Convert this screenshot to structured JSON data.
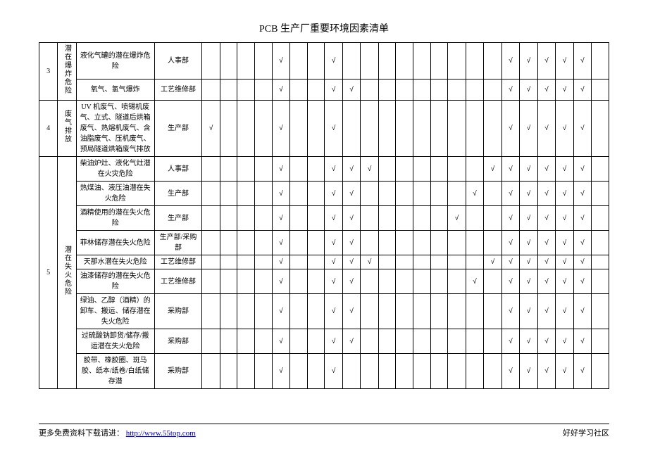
{
  "title": "PCB 生产厂重要环境因素清单",
  "footer": {
    "left_prefix": "更多免费资料下载请进：",
    "link_text": "http://www.55top.com",
    "right_text": "好好学习社区"
  },
  "check_symbol": "√",
  "groups": [
    {
      "num": "3",
      "category": "潜在爆炸危险",
      "rows": [
        {
          "desc": "液化气罐的潜在爆炸危险",
          "dept": "人事部",
          "marks": [
            0,
            0,
            0,
            0,
            1,
            0,
            0,
            1,
            0,
            0,
            0,
            0,
            0,
            0,
            0,
            0,
            0,
            1,
            1,
            1,
            1,
            1,
            0
          ]
        },
        {
          "desc": "氧气、氢气爆炸",
          "dept": "工艺维修部",
          "marks": [
            0,
            0,
            0,
            0,
            1,
            0,
            0,
            1,
            1,
            0,
            0,
            0,
            0,
            0,
            0,
            0,
            0,
            1,
            1,
            1,
            1,
            1,
            0
          ]
        }
      ]
    },
    {
      "num": "4",
      "category": "废气排放",
      "rows": [
        {
          "desc": "UV 机废气、喷锡机废气、立式、隧道后烘箱废气、热熔机废气、含油脂废气、压机废气、预局隧道烘箱废气排放",
          "dept": "生产部",
          "marks": [
            1,
            0,
            0,
            0,
            1,
            0,
            0,
            1,
            0,
            0,
            0,
            0,
            0,
            0,
            0,
            0,
            0,
            1,
            1,
            1,
            1,
            1,
            0
          ]
        }
      ]
    },
    {
      "num": "5",
      "category": "潜在失火危险",
      "rows": [
        {
          "desc": "柴油炉灶、液化气灶潜在火灾危险",
          "dept": "人事部",
          "marks": [
            0,
            0,
            0,
            0,
            1,
            0,
            0,
            1,
            1,
            1,
            0,
            0,
            0,
            0,
            0,
            0,
            1,
            1,
            1,
            1,
            1,
            1,
            0
          ]
        },
        {
          "desc": "热煤油、液压油潜在失火危险",
          "dept": "生产部",
          "marks": [
            0,
            0,
            0,
            0,
            1,
            0,
            0,
            1,
            1,
            0,
            0,
            0,
            0,
            0,
            0,
            1,
            0,
            1,
            1,
            1,
            1,
            1,
            0
          ]
        },
        {
          "desc": "酒精使用的潜在失火危险",
          "dept": "生产部",
          "marks": [
            0,
            0,
            0,
            0,
            1,
            0,
            0,
            1,
            1,
            0,
            0,
            0,
            0,
            0,
            1,
            0,
            0,
            1,
            1,
            1,
            1,
            1,
            0
          ]
        },
        {
          "desc": "菲林储存潜在失火危险",
          "dept": "生产部/采购部",
          "marks": [
            0,
            0,
            0,
            0,
            1,
            0,
            0,
            1,
            1,
            0,
            0,
            0,
            0,
            0,
            0,
            0,
            0,
            1,
            1,
            1,
            1,
            1,
            0
          ]
        },
        {
          "desc": "天那水潜在失火危险",
          "dept": "工艺维修部",
          "marks": [
            0,
            0,
            0,
            0,
            1,
            0,
            0,
            1,
            1,
            1,
            0,
            0,
            0,
            0,
            0,
            0,
            1,
            1,
            1,
            1,
            1,
            1,
            0
          ]
        },
        {
          "desc": "油漆储存的潜在失火危险",
          "dept": "工艺维修部",
          "marks": [
            0,
            0,
            0,
            0,
            1,
            0,
            0,
            1,
            1,
            0,
            0,
            0,
            0,
            0,
            0,
            1,
            0,
            1,
            1,
            1,
            1,
            1,
            0
          ]
        },
        {
          "desc": "绿油、乙醇（酒精）的卸车、搬运、储存潜在失火危险",
          "dept": "采购部",
          "marks": [
            0,
            0,
            0,
            0,
            1,
            0,
            0,
            1,
            1,
            0,
            0,
            0,
            0,
            0,
            0,
            0,
            0,
            1,
            1,
            1,
            1,
            1,
            0
          ]
        },
        {
          "desc": "过硫酸钠卸货/储存/搬运潜在失火危险",
          "dept": "采购部",
          "marks": [
            0,
            0,
            0,
            0,
            1,
            0,
            0,
            1,
            1,
            0,
            0,
            0,
            0,
            0,
            0,
            0,
            0,
            1,
            1,
            1,
            1,
            1,
            0
          ]
        },
        {
          "desc": "胶带、橡胶圈、斑马胶、纸本/纸卷/白纸储存潜",
          "dept": "采购部",
          "marks": [
            0,
            0,
            0,
            0,
            1,
            0,
            0,
            1,
            0,
            0,
            0,
            0,
            0,
            0,
            0,
            0,
            0,
            1,
            1,
            1,
            1,
            1,
            0
          ]
        }
      ]
    }
  ]
}
